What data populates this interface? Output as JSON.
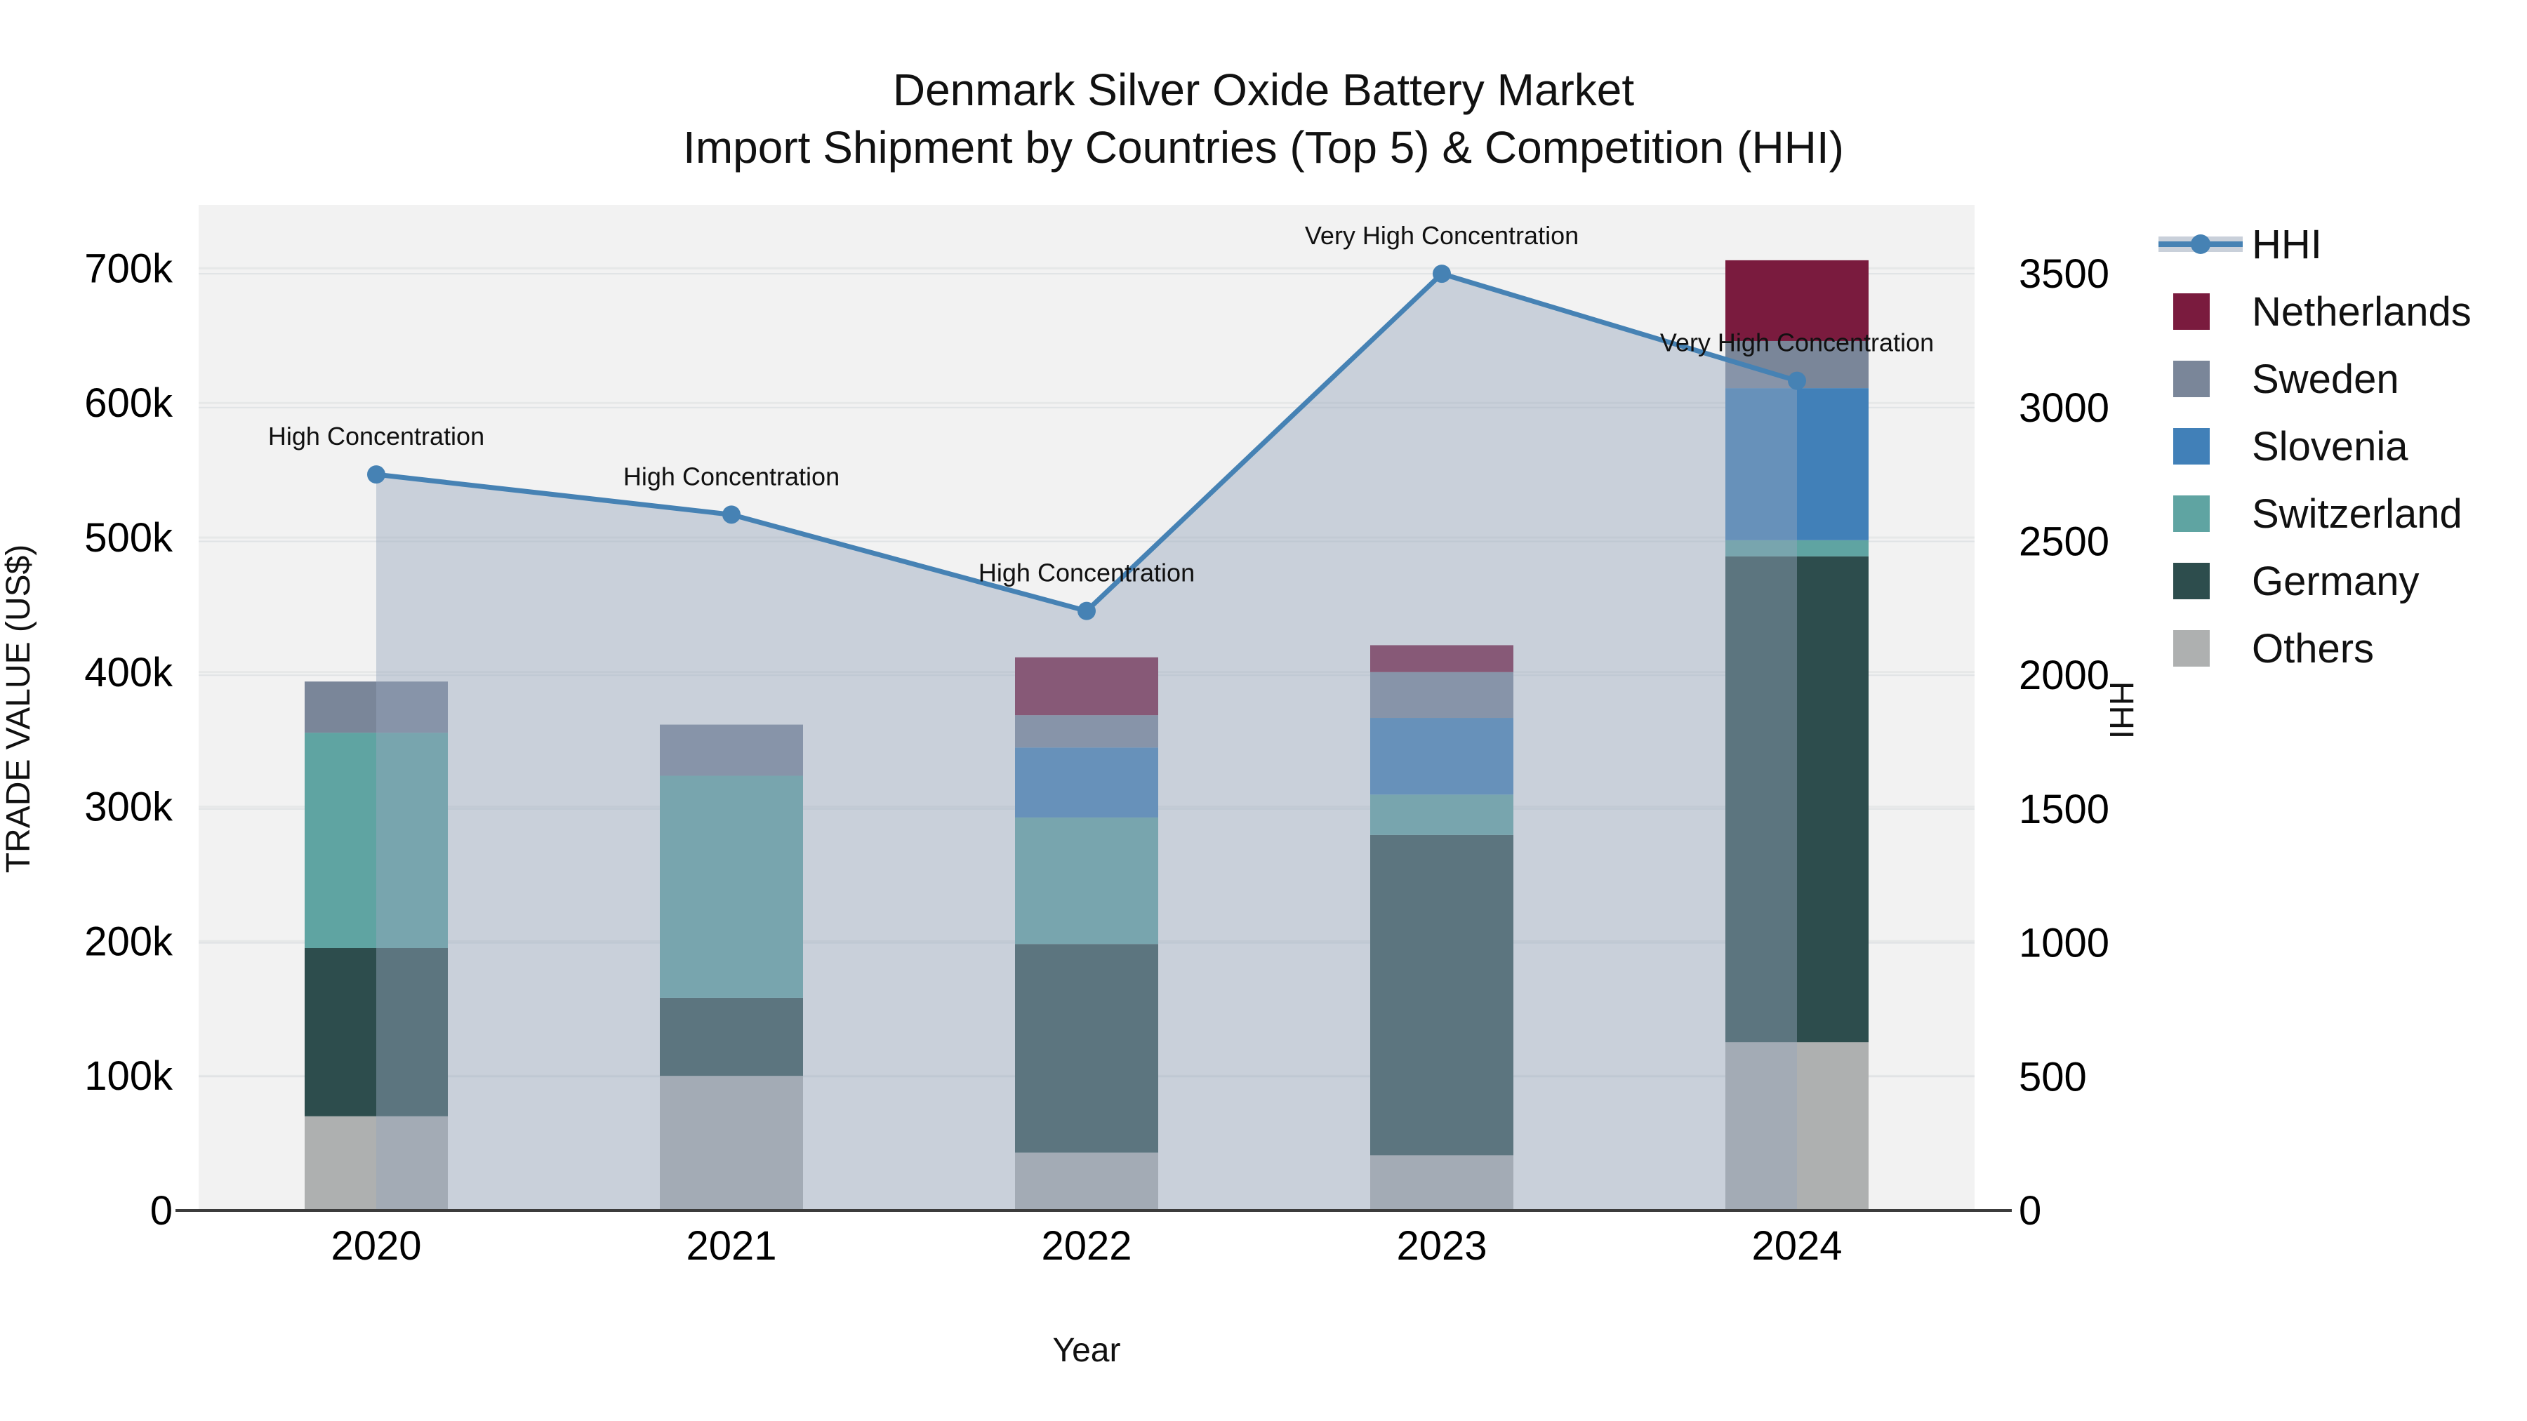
{
  "title": {
    "line1": "Denmark Silver Oxide Battery Market",
    "line2": "Import Shipment by Countries (Top 5) & Competition (HHI)"
  },
  "axes": {
    "left": {
      "title": "TRADE VALUE (US$)",
      "ticks": [
        "0",
        "100k",
        "200k",
        "300k",
        "400k",
        "500k",
        "600k",
        "700k"
      ]
    },
    "right": {
      "title": "HHI",
      "ticks": [
        "0",
        "500",
        "1000",
        "1500",
        "2000",
        "2500",
        "3000",
        "3500"
      ]
    },
    "x": {
      "title": "Year",
      "categories": [
        "2020",
        "2021",
        "2022",
        "2023",
        "2024"
      ]
    }
  },
  "legend": {
    "items": [
      {
        "label": "HHI",
        "color": "#4682b4",
        "type": "line"
      },
      {
        "label": "Netherlands",
        "color": "#7a1b3e",
        "type": "square"
      },
      {
        "label": "Sweden",
        "color": "#7a8699",
        "type": "square"
      },
      {
        "label": "Slovenia",
        "color": "#4180b8",
        "type": "square"
      },
      {
        "label": "Switzerland",
        "color": "#5fa4a2",
        "type": "square"
      },
      {
        "label": "Germany",
        "color": "#2d4d4d",
        "type": "square"
      },
      {
        "label": "Others",
        "color": "#aeb0b0",
        "type": "square"
      }
    ]
  },
  "chart_data": {
    "type": "bar+line",
    "title": "Denmark Silver Oxide Battery Market — Import Shipment by Countries (Top 5) & Competition (HHI)",
    "categories": [
      "2020",
      "2021",
      "2022",
      "2023",
      "2024"
    ],
    "bar_stack_order_bottom_to_top": [
      "Others",
      "Germany",
      "Switzerland",
      "Slovenia",
      "Sweden",
      "Netherlands"
    ],
    "bar_series": [
      {
        "name": "Others",
        "color": "#aeb0b0",
        "values": [
          70000,
          100000,
          43000,
          41000,
          125000
        ]
      },
      {
        "name": "Germany",
        "color": "#2d4d4d",
        "values": [
          125000,
          58000,
          155000,
          238000,
          361000
        ]
      },
      {
        "name": "Switzerland",
        "color": "#5fa4a2",
        "values": [
          160000,
          165000,
          94000,
          30000,
          12000
        ]
      },
      {
        "name": "Slovenia",
        "color": "#4180b8",
        "values": [
          0,
          0,
          52000,
          57000,
          113000
        ]
      },
      {
        "name": "Sweden",
        "color": "#7a8699",
        "values": [
          38000,
          38000,
          24000,
          34000,
          35000
        ]
      },
      {
        "name": "Netherlands",
        "color": "#7a1b3e",
        "values": [
          0,
          0,
          43000,
          20000,
          60000
        ]
      }
    ],
    "bar_totals": [
      393000,
      361000,
      411000,
      420000,
      706000
    ],
    "line_series": {
      "name": "HHI",
      "axis": "right",
      "color": "#4682b4",
      "area_fill": true,
      "values": [
        2750,
        2600,
        2240,
        3500,
        3100
      ]
    },
    "annotations": [
      {
        "x": "2020",
        "text": "High Concentration"
      },
      {
        "x": "2021",
        "text": "High Concentration"
      },
      {
        "x": "2022",
        "text": "High Concentration"
      },
      {
        "x": "2023",
        "text": "Very High Concentration"
      },
      {
        "x": "2024",
        "text": "Very High Concentration"
      }
    ],
    "xlabel": "Year",
    "ylabel_left": "TRADE VALUE (US$)",
    "ylabel_right": "HHI",
    "ylim_left": [
      0,
      747000
    ],
    "ylim_right": [
      0,
      3650
    ],
    "grid": true,
    "legend_position": "right"
  },
  "colors": {
    "plot_bg": "#f2f2f2",
    "grid_major": "#e6e8e8",
    "grid_minor": "#e0e3e5",
    "axis_line": "#3c3c3c",
    "area_fill": "rgba(150,166,188,0.45)",
    "hhi_band": "#c9d0da",
    "text": "#111111"
  }
}
